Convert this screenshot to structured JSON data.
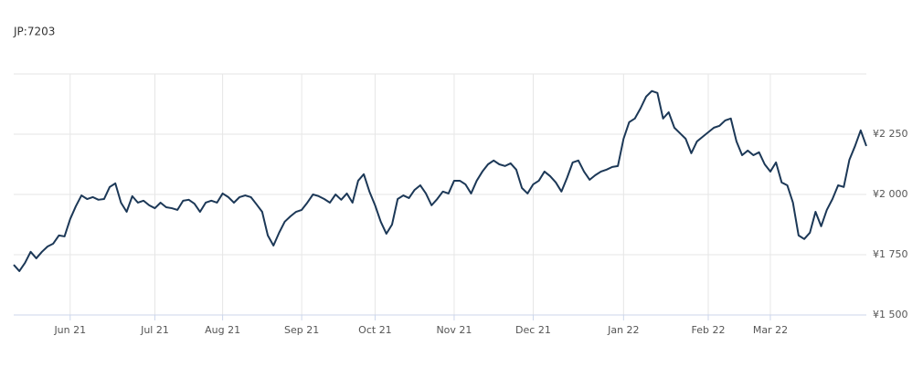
{
  "chart_data": {
    "type": "line",
    "title": "JP:7203",
    "series": [
      {
        "name": null,
        "color": "#1c3857",
        "values": [
          1708,
          1682,
          1716,
          1762,
          1735,
          1762,
          1784,
          1796,
          1830,
          1826,
          1898,
          1951,
          1996,
          1981,
          1989,
          1978,
          1981,
          2031,
          2046,
          1966,
          1928,
          1993,
          1966,
          1974,
          1955,
          1943,
          1966,
          1947,
          1943,
          1936,
          1974,
          1978,
          1962,
          1928,
          1966,
          1974,
          1966,
          2004,
          1989,
          1966,
          1989,
          1996,
          1989,
          1959,
          1928,
          1830,
          1788,
          1841,
          1887,
          1909,
          1928,
          1936,
          1966,
          2000,
          1993,
          1981,
          1966,
          2000,
          1978,
          2004,
          1966,
          2057,
          2084,
          2012,
          1955,
          1887,
          1837,
          1875,
          1981,
          1996,
          1985,
          2019,
          2038,
          2004,
          1955,
          1981,
          2012,
          2004,
          2057,
          2057,
          2042,
          2004,
          2057,
          2095,
          2125,
          2141,
          2125,
          2118,
          2129,
          2103,
          2027,
          2004,
          2042,
          2057,
          2095,
          2076,
          2050,
          2012,
          2069,
          2133,
          2141,
          2095,
          2061,
          2080,
          2095,
          2103,
          2114,
          2118,
          2231,
          2300,
          2315,
          2357,
          2406,
          2429,
          2421,
          2315,
          2341,
          2277,
          2254,
          2231,
          2171,
          2220,
          2239,
          2258,
          2277,
          2285,
          2307,
          2315,
          2220,
          2163,
          2182,
          2163,
          2175,
          2125,
          2095,
          2133,
          2050,
          2038,
          1966,
          1830,
          1815,
          1841,
          1928,
          1868,
          1936,
          1981,
          2038,
          2031,
          2144,
          2201,
          2266,
          2201
        ]
      }
    ],
    "xlim": [
      0,
      151
    ],
    "xticks": [
      {
        "value": 10,
        "label": "Jun 21"
      },
      {
        "value": 25,
        "label": "Jul 21"
      },
      {
        "value": 37,
        "label": "Aug 21"
      },
      {
        "value": 51,
        "label": "Sep 21"
      },
      {
        "value": 64,
        "label": "Oct 21"
      },
      {
        "value": 78,
        "label": "Nov 21"
      },
      {
        "value": 92,
        "label": "Dec 21"
      },
      {
        "value": 108,
        "label": "Jan 22"
      },
      {
        "value": 123,
        "label": "Feb 22"
      },
      {
        "value": 134,
        "label": "Mar 22"
      }
    ],
    "ylim": [
      1500,
      2500
    ],
    "yticks": [
      {
        "value": 1500,
        "label": "¥1 500"
      },
      {
        "value": 1750,
        "label": "¥1 750"
      },
      {
        "value": 2000,
        "label": "¥2 000"
      },
      {
        "value": 2250,
        "label": "¥2 250"
      }
    ],
    "grid": true
  }
}
